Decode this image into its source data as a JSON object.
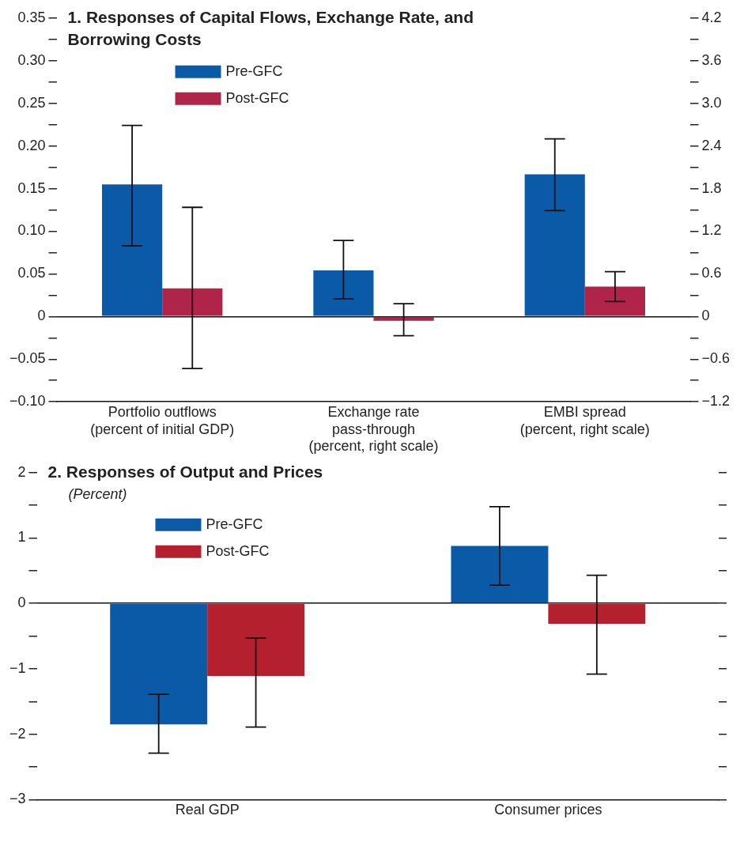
{
  "chart_data": [
    {
      "type": "bar",
      "title": "1. Responses of Capital Flows, Exchange Rate, and Borrowing Costs",
      "categories": [
        "Portfolio outflows\n(percent of initial GDP)",
        "Exchange rate\npass-through\n(percent, right scale)",
        "EMBI spread\n(percent, right scale)"
      ],
      "series": [
        {
          "name": "Pre-GFC",
          "color": "#0b5aa8",
          "values": [
            0.155,
            null,
            null
          ],
          "errors": [
            [
              0.083,
              0.224
            ],
            null,
            null
          ]
        },
        {
          "name": "Post-GFC",
          "color": "#b0244a",
          "values": [
            0.033,
            null,
            null
          ],
          "errors": [
            [
              -0.061,
              0.128
            ],
            null,
            null
          ]
        },
        {
          "color": "#0b5aa8",
          "axis": "y2",
          "values": [
            null,
            0.65,
            2.0
          ],
          "errors": [
            null,
            [
              0.25,
              1.07
            ],
            [
              1.49,
              2.5
            ]
          ]
        },
        {
          "color": "#b0244a",
          "axis": "y2",
          "values": [
            null,
            -0.06,
            0.42
          ],
          "errors": [
            null,
            [
              -0.27,
              0.18
            ],
            [
              0.21,
              0.63
            ]
          ]
        }
      ],
      "ylim": [
        -0.1,
        0.35
      ],
      "yticks": [
        {
          "value": -0.1,
          "label": "−0.10"
        },
        {
          "value": -0.075,
          "label": null
        },
        {
          "value": -0.05,
          "label": "−0.05"
        },
        {
          "value": -0.025,
          "label": null
        },
        0,
        {
          "value": 0.025,
          "label": null
        },
        0.05,
        {
          "value": 0.075,
          "label": null
        },
        {
          "value": 0.1,
          "label": "0.10"
        },
        {
          "value": 0.125,
          "label": null
        },
        0.15,
        {
          "value": 0.175,
          "label": null
        },
        {
          "value": 0.2,
          "label": "0.20"
        },
        {
          "value": 0.225,
          "label": null
        },
        0.25,
        {
          "value": 0.275,
          "label": null
        },
        {
          "value": 0.3,
          "label": "0.30"
        },
        {
          "value": 0.325,
          "label": null
        },
        0.35
      ],
      "y2lim": [
        -1.2,
        4.2
      ],
      "y2ticks": [
        {
          "value": -1.2,
          "label": "−1.2"
        },
        {
          "value": -0.9,
          "label": null
        },
        {
          "value": -0.6,
          "label": "−0.6"
        },
        {
          "value": -0.3,
          "label": null
        },
        0,
        {
          "value": 0.3,
          "label": null
        },
        0.6,
        {
          "value": 0.9,
          "label": null
        },
        1.2,
        {
          "value": 1.5,
          "label": null
        },
        1.8,
        {
          "value": 2.1,
          "label": null
        },
        2.4,
        {
          "value": 2.7,
          "label": null
        },
        {
          "value": 3,
          "label": "3.0"
        },
        {
          "value": 3.3,
          "label": null
        },
        3.6,
        {
          "value": 3.9,
          "label": null
        },
        4.2
      ],
      "legend": "top left"
    },
    {
      "type": "bar",
      "title": "2. Responses of Output and Prices",
      "subtitle": "(Percent)",
      "categories": [
        "Real GDP",
        "Consumer prices"
      ],
      "series": [
        {
          "name": "Pre-GFC",
          "color": "#0b5aa8",
          "values": [
            -1.85,
            0.88
          ],
          "errors": [
            [
              -2.29,
              -1.39
            ],
            [
              0.28,
              1.48
            ]
          ]
        },
        {
          "name": "Post-GFC",
          "color": "#b5202e",
          "values": [
            -1.11,
            -0.31
          ],
          "errors": [
            [
              -1.89,
              -0.53
            ],
            [
              -1.08,
              0.43
            ]
          ]
        }
      ],
      "ylim": [
        -3,
        2
      ],
      "yticks": [
        {
          "value": -3,
          "label": "−3"
        },
        {
          "value": -2.5,
          "label": null
        },
        {
          "value": -2,
          "label": "−2"
        },
        {
          "value": -1.5,
          "label": null
        },
        {
          "value": -1,
          "label": "−1"
        },
        {
          "value": -0.5,
          "label": null
        },
        0,
        {
          "value": 0.5,
          "label": null
        },
        1,
        {
          "value": 1.5,
          "label": null
        },
        2
      ],
      "legend": "top left"
    }
  ]
}
